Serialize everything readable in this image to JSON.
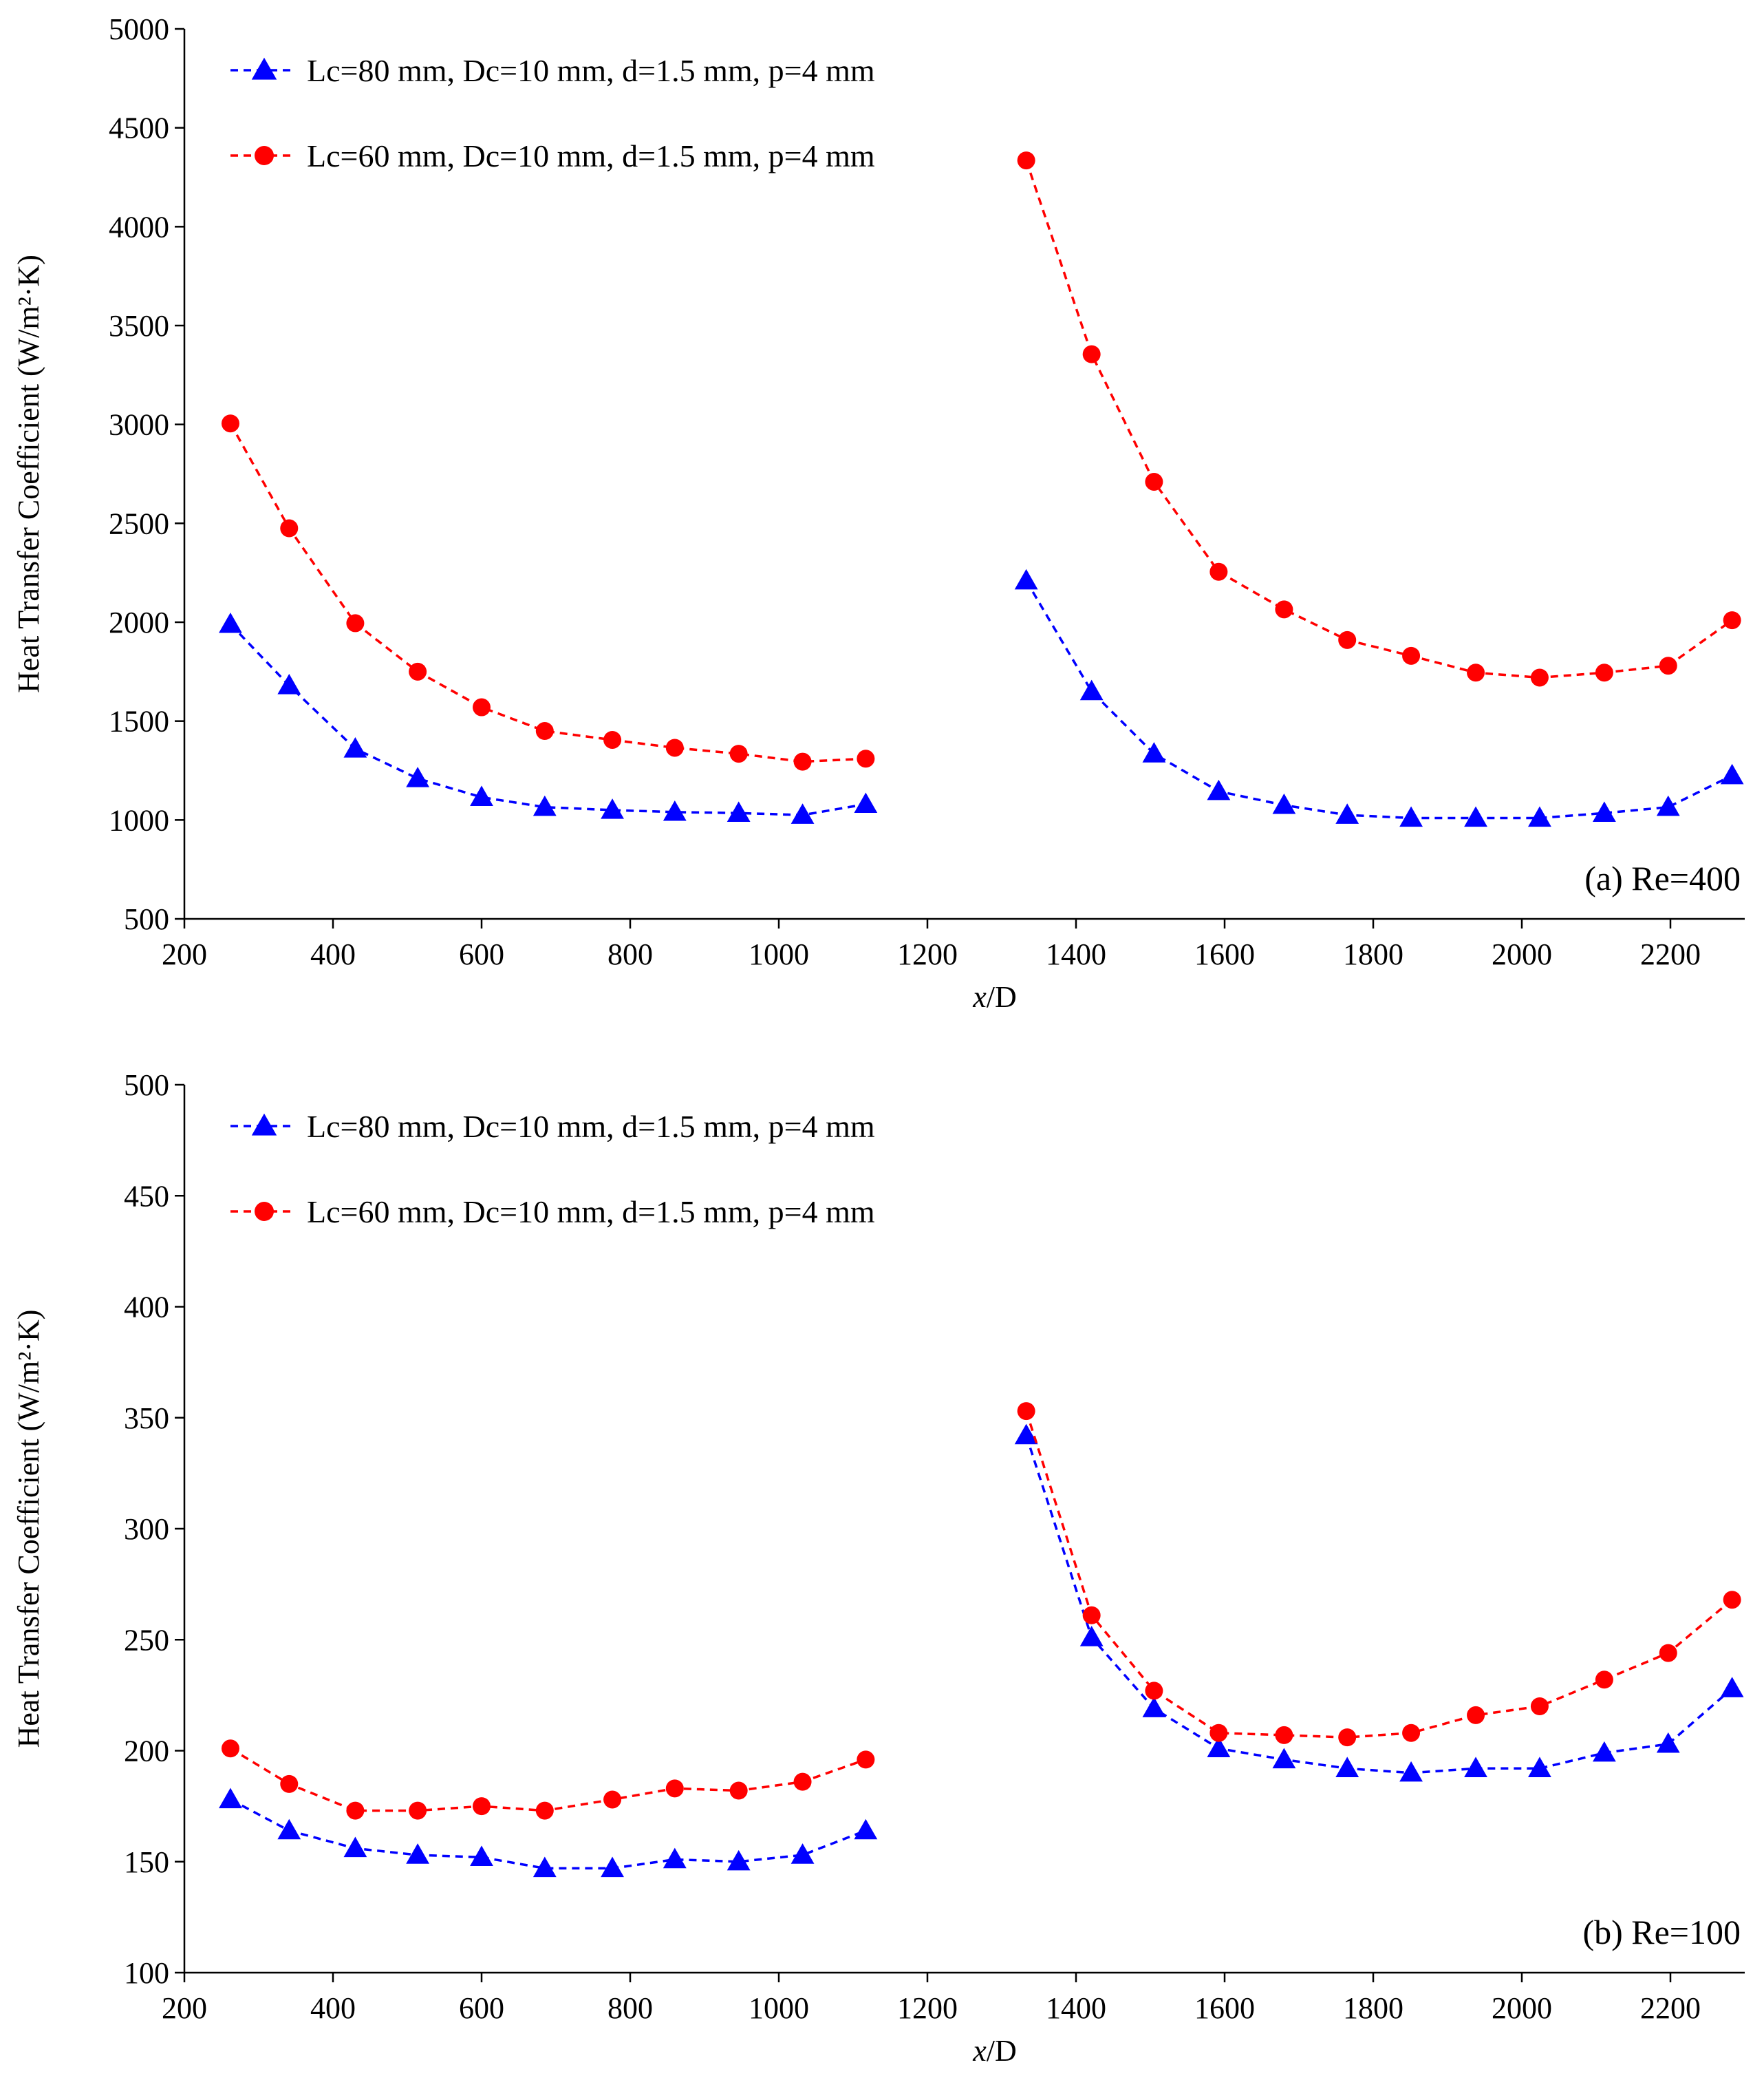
{
  "chart_data": [
    {
      "type": "line",
      "panel": "a",
      "annotation": "(a) Re=400",
      "xlabel_italic": "x",
      "xlabel_rest": "/D",
      "ylabel": "Heat Transfer Coefficient (W/m²·K)",
      "xlim": [
        200,
        2300
      ],
      "ylim": [
        500,
        5000
      ],
      "xticks": [
        200,
        400,
        600,
        800,
        1000,
        1200,
        1400,
        1600,
        1800,
        2000,
        2200
      ],
      "yticks": [
        500,
        1000,
        1500,
        2000,
        2500,
        3000,
        3500,
        4000,
        4500,
        5000
      ],
      "legend_position": "top-left",
      "series": [
        {
          "name": "Lc=80 mm, Dc=10 mm, d=1.5 mm, p=4 mm",
          "color": "#0000ff",
          "marker": "triangle",
          "line": "dashed",
          "segments": [
            {
              "x": [
                262,
                341,
                430,
                514,
                600,
                685,
                776,
                860,
                946,
                1032,
                1117
              ],
              "y": [
                1990,
                1680,
                1360,
                1210,
                1115,
                1065,
                1050,
                1040,
                1035,
                1025,
                1080
              ]
            },
            {
              "x": [
                1333,
                1421,
                1505,
                1592,
                1680,
                1765,
                1851,
                1938,
                2024,
                2111,
                2197,
                2283
              ],
              "y": [
                2210,
                1650,
                1335,
                1145,
                1075,
                1025,
                1010,
                1010,
                1010,
                1035,
                1065,
                1225
              ]
            }
          ]
        },
        {
          "name": "Lc=60 mm, Dc=10 mm, d=1.5 mm, p=4 mm",
          "color": "#ff0000",
          "marker": "circle",
          "line": "dashed",
          "segments": [
            {
              "x": [
                262,
                341,
                430,
                514,
                600,
                685,
                776,
                860,
                946,
                1032,
                1117
              ],
              "y": [
                3005,
                2475,
                1995,
                1750,
                1570,
                1450,
                1405,
                1365,
                1335,
                1295,
                1310
              ]
            },
            {
              "x": [
                1333,
                1421,
                1505,
                1592,
                1680,
                1765,
                1851,
                1938,
                2024,
                2111,
                2197,
                2283
              ],
              "y": [
                4335,
                3355,
                2710,
                2255,
                2065,
                1910,
                1830,
                1745,
                1720,
                1745,
                1780,
                2010
              ]
            }
          ]
        }
      ]
    },
    {
      "type": "line",
      "panel": "b",
      "annotation": "(b) Re=100",
      "xlabel_italic": "x",
      "xlabel_rest": "/D",
      "ylabel": "Heat Transfer Coefficient (W/m²·K)",
      "xlim": [
        200,
        2300
      ],
      "ylim": [
        100,
        500
      ],
      "xticks": [
        200,
        400,
        600,
        800,
        1000,
        1200,
        1400,
        1600,
        1800,
        2000,
        2200
      ],
      "yticks": [
        100,
        150,
        200,
        250,
        300,
        350,
        400,
        450,
        500
      ],
      "legend_position": "top-left",
      "series": [
        {
          "name": "Lc=80 mm, Dc=10 mm, d=1.5 mm, p=4 mm",
          "color": "#0000ff",
          "marker": "triangle",
          "line": "dashed",
          "segments": [
            {
              "x": [
                262,
                341,
                430,
                514,
                600,
                685,
                776,
                860,
                946,
                1032,
                1117
              ],
              "y": [
                178,
                164,
                156,
                153,
                152,
                147,
                147,
                151,
                150,
                153,
                164
              ]
            },
            {
              "x": [
                1333,
                1421,
                1505,
                1592,
                1680,
                1765,
                1851,
                1938,
                2024,
                2111,
                2197,
                2283
              ],
              "y": [
                342,
                251,
                219,
                201,
                196,
                192,
                190,
                192,
                192,
                199,
                203,
                228
              ]
            }
          ]
        },
        {
          "name": "Lc=60 mm, Dc=10 mm, d=1.5 mm, p=4 mm",
          "color": "#ff0000",
          "marker": "circle",
          "line": "dashed",
          "segments": [
            {
              "x": [
                262,
                341,
                430,
                514,
                600,
                685,
                776,
                860,
                946,
                1032,
                1117
              ],
              "y": [
                201,
                185,
                173,
                173,
                175,
                173,
                178,
                183,
                182,
                186,
                196
              ]
            },
            {
              "x": [
                1333,
                1421,
                1505,
                1592,
                1680,
                1765,
                1851,
                1938,
                2024,
                2111,
                2197,
                2283
              ],
              "y": [
                353,
                261,
                227,
                208,
                207,
                206,
                208,
                216,
                220,
                232,
                244,
                268
              ]
            }
          ]
        }
      ]
    }
  ]
}
